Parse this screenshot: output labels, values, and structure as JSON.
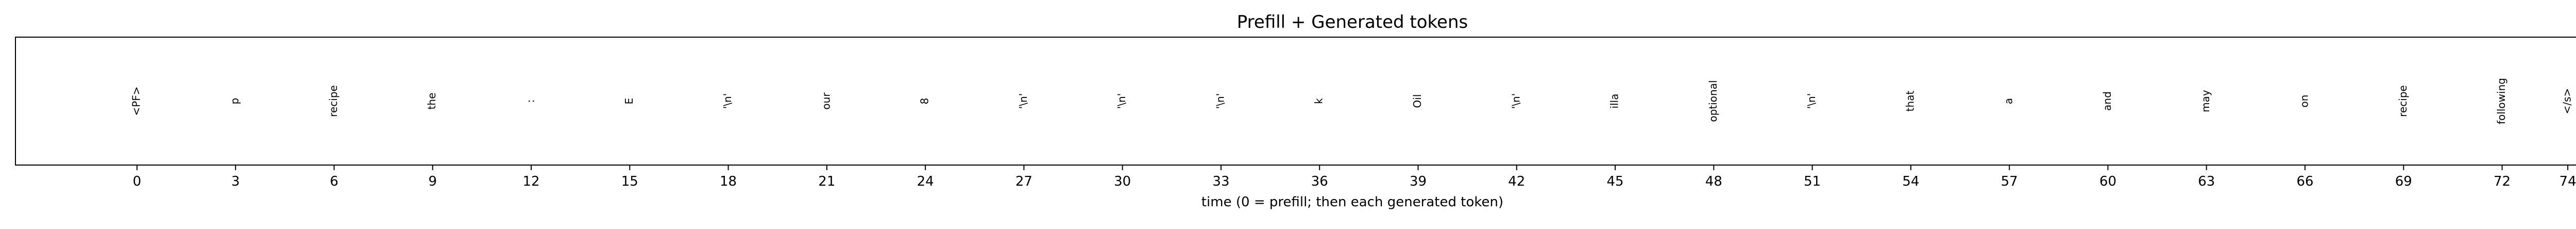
{
  "chart_data": {
    "type": "table",
    "title": "Prefill + Generated tokens",
    "xlabel": "time (0 = prefill; then each generated token)",
    "ylabel": "",
    "grid": false,
    "x_ticks": [
      0,
      3,
      6,
      9,
      12,
      15,
      18,
      21,
      24,
      27,
      30,
      33,
      36,
      39,
      42,
      45,
      48,
      51,
      54,
      57,
      60,
      63,
      66,
      69,
      72,
      74
    ],
    "xlim": [
      -3.7,
      77.7
    ],
    "points": [
      {
        "x": 0,
        "token": "<PF>"
      },
      {
        "x": 3,
        "token": "p"
      },
      {
        "x": 6,
        "token": "recipe"
      },
      {
        "x": 9,
        "token": "the"
      },
      {
        "x": 12,
        "token": ":"
      },
      {
        "x": 15,
        "token": "E"
      },
      {
        "x": 18,
        "token": "'\\n'"
      },
      {
        "x": 21,
        "token": "our"
      },
      {
        "x": 24,
        "token": "8"
      },
      {
        "x": 27,
        "token": "'\\n'"
      },
      {
        "x": 30,
        "token": "'\\n'"
      },
      {
        "x": 33,
        "token": "'\\n'"
      },
      {
        "x": 36,
        "token": "k"
      },
      {
        "x": 39,
        "token": "Oil"
      },
      {
        "x": 42,
        "token": "'\\n'"
      },
      {
        "x": 45,
        "token": "illa"
      },
      {
        "x": 48,
        "token": "optional"
      },
      {
        "x": 51,
        "token": "'\\n'"
      },
      {
        "x": 54,
        "token": "that"
      },
      {
        "x": 57,
        "token": "a"
      },
      {
        "x": 60,
        "token": "and"
      },
      {
        "x": 63,
        "token": "may"
      },
      {
        "x": 66,
        "token": "on"
      },
      {
        "x": 69,
        "token": "recipe"
      },
      {
        "x": 72,
        "token": "following"
      },
      {
        "x": 74,
        "token": "</s>"
      }
    ]
  }
}
